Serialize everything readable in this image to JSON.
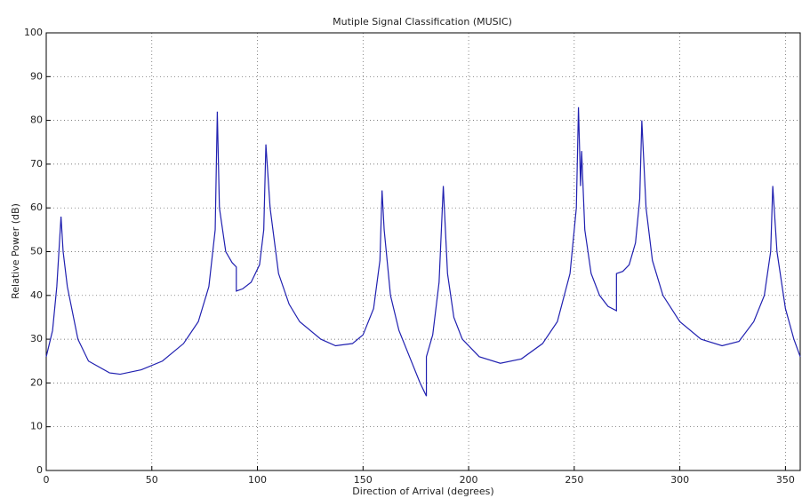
{
  "chart_data": {
    "type": "line",
    "title": "Mutiple Signal Classification (MUSIC)",
    "x_label": "Direction of Arrival (degrees)",
    "y_label": "Relative Power (dB)",
    "xlim": [
      0,
      357
    ],
    "ylim": [
      0,
      100
    ],
    "xticks": [
      0,
      50,
      100,
      150,
      200,
      250,
      300,
      350
    ],
    "yticks": [
      0,
      10,
      20,
      30,
      40,
      50,
      60,
      70,
      80,
      90,
      100
    ],
    "grid": true,
    "series": [
      {
        "color": "#2020b0",
        "x": [
          0,
          3,
          5,
          7,
          8,
          10,
          15,
          20,
          30,
          35,
          45,
          55,
          65,
          72,
          77,
          80,
          81,
          82,
          85,
          88,
          90,
          90,
          93,
          97,
          101,
          103,
          104,
          106,
          110,
          115,
          120,
          130,
          137,
          145,
          150,
          155,
          158,
          159,
          160,
          163,
          167,
          172,
          177,
          180,
          180,
          183,
          186,
          188,
          190,
          193,
          197,
          205,
          215,
          225,
          235,
          242,
          248,
          251,
          252,
          253,
          253.5,
          255,
          258,
          262,
          266,
          270,
          270,
          273,
          276,
          279,
          281,
          282,
          284,
          287,
          292,
          300,
          310,
          320,
          328,
          335,
          340,
          343,
          344,
          346,
          350,
          354,
          357
        ],
        "values": [
          26,
          32,
          42,
          58,
          50,
          42,
          30,
          25,
          22.3,
          22,
          23,
          25,
          29,
          34,
          42,
          55,
          82,
          60,
          50,
          47.5,
          46.5,
          41,
          41.5,
          43,
          47,
          55,
          74.5,
          60,
          45,
          38,
          34,
          30,
          28.5,
          29,
          31,
          37,
          48,
          64,
          55,
          40,
          32,
          26,
          20,
          17,
          26,
          31,
          43,
          65,
          45,
          35,
          30,
          26,
          24.5,
          25.5,
          29,
          34,
          45,
          60,
          83,
          65,
          73,
          55,
          45,
          40,
          37.5,
          36.5,
          45,
          45.5,
          47,
          52,
          62,
          80,
          60,
          48,
          40,
          34,
          30,
          28.5,
          29.5,
          34,
          40,
          50,
          65,
          50,
          37,
          30,
          26
        ]
      }
    ]
  }
}
